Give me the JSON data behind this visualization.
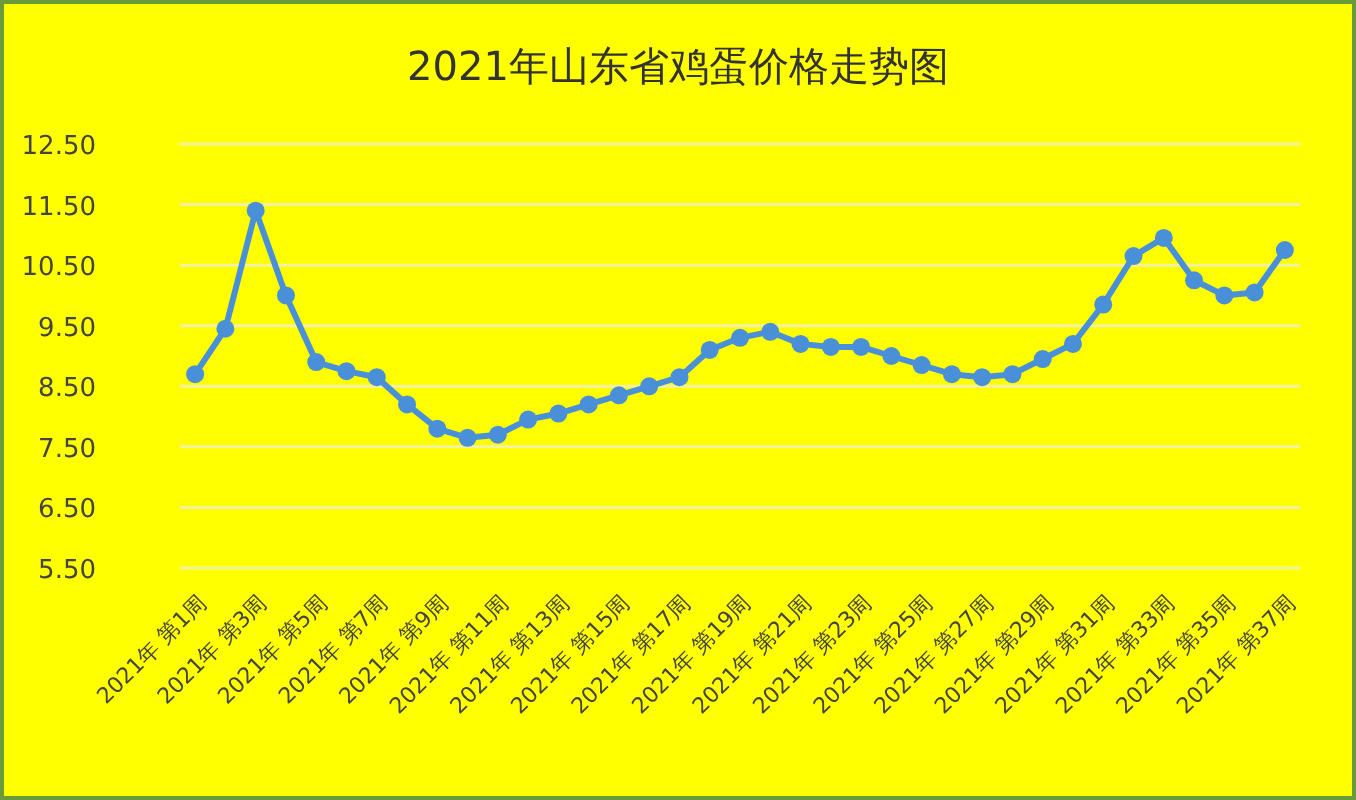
{
  "chart_data": {
    "type": "line",
    "title": "2021年山东省鸡蛋价格走势图",
    "categories": [
      "2021年 第1周",
      null,
      "2021年 第3周",
      null,
      "2021年 第5周",
      null,
      "2021年 第7周",
      null,
      "2021年 第9周",
      null,
      "2021年 第11周",
      null,
      "2021年 第13周",
      null,
      "2021年 第15周",
      null,
      "2021年 第17周",
      null,
      "2021年 第19周",
      null,
      "2021年 第21周",
      null,
      "2021年 第23周",
      null,
      "2021年 第25周",
      null,
      "2021年 第27周",
      null,
      "2021年 第29周",
      null,
      "2021年 第31周",
      null,
      "2021年 第33周",
      null,
      "2021年 第35周",
      null,
      "2021年 第37周"
    ],
    "values": [
      8.7,
      9.45,
      11.4,
      10.0,
      8.9,
      8.75,
      8.65,
      8.2,
      7.8,
      7.65,
      7.7,
      7.95,
      8.05,
      8.2,
      8.35,
      8.5,
      8.65,
      9.1,
      9.3,
      9.4,
      9.2,
      9.15,
      9.15,
      9.0,
      8.85,
      8.7,
      8.65,
      8.7,
      8.95,
      9.2,
      9.85,
      10.65,
      10.95,
      10.25,
      10.0,
      10.05,
      10.75
    ],
    "color": "#4a90d9",
    "ylim": [
      5.5,
      12.5
    ],
    "yticks": [
      {
        "value": 5.5,
        "label": "5.50"
      },
      {
        "value": 6.5,
        "label": "6.50"
      },
      {
        "value": 7.5,
        "label": "7.50"
      },
      {
        "value": 8.5,
        "label": "8.50"
      },
      {
        "value": 9.5,
        "label": "9.50"
      },
      {
        "value": 10.5,
        "label": "10.50"
      },
      {
        "value": 11.5,
        "label": "11.50"
      },
      {
        "value": 12.5,
        "label": "12.50"
      }
    ],
    "grid": "y",
    "marker": "circle"
  }
}
